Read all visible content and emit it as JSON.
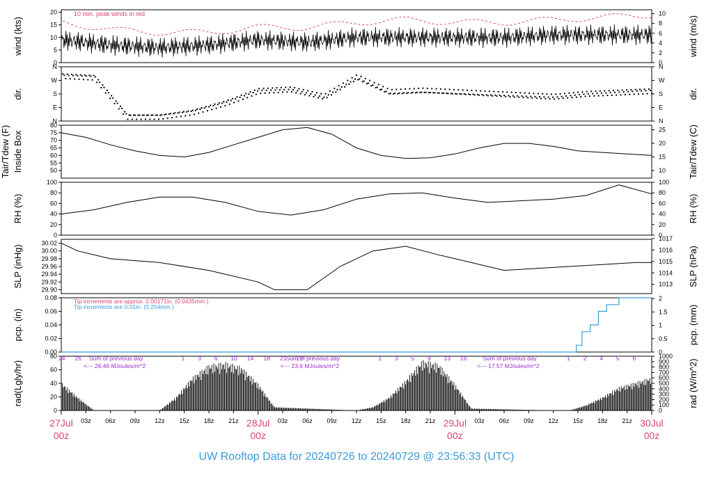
{
  "footer": {
    "title": "UW Rooftop Data for 20240726  to  20240729 @ 23:56:33  (UTC)"
  },
  "colors": {
    "frame": "#000000",
    "peak": "#d9456b",
    "date_label": "#d9456b",
    "title": "#3a9ad9",
    "pcp_line": "#3a9ad9",
    "annotation": "#9b2bd1"
  },
  "x_axis": {
    "hour_ticks": [
      "03z",
      "06z",
      "09z",
      "12z",
      "15z",
      "18z",
      "21z",
      "03z",
      "06z",
      "09z",
      "12z",
      "15z",
      "18z",
      "21z",
      "03z",
      "06z",
      "09z",
      "12z",
      "15z",
      "18z",
      "21z"
    ],
    "date_labels": [
      {
        "day": "27Jul",
        "time": "00z"
      },
      {
        "day": "28Jul",
        "time": "00z"
      },
      {
        "day": "29Jul",
        "time": "00z"
      },
      {
        "day": "30Jul",
        "time": "00z"
      }
    ]
  },
  "chart_data": [
    {
      "type": "line",
      "ylabel": "wind (kts)",
      "y2label": "wind (m/s)",
      "ylim": [
        0,
        21
      ],
      "y2lim": [
        0,
        10.8
      ],
      "yticks": [
        "0",
        "5",
        "10",
        "15",
        "20"
      ],
      "y2ticks": [
        "0",
        "2",
        "4",
        "6",
        "8",
        "10"
      ],
      "annotation": "10 min. peak winds in red",
      "series": [
        {
          "x": [
            0,
            6,
            12,
            18,
            24,
            30,
            36,
            42,
            48,
            54,
            60,
            66,
            72
          ],
          "y": [
            9,
            7,
            6,
            7,
            9,
            8,
            10,
            10,
            10,
            10,
            11,
            11,
            11
          ]
        },
        {
          "x": [
            0,
            6,
            12,
            18,
            24,
            30,
            36,
            42,
            48,
            54,
            60,
            66,
            72
          ],
          "y": [
            16,
            13,
            12,
            12,
            14,
            14,
            16,
            17,
            16,
            16,
            17,
            18,
            19
          ]
        }
      ]
    },
    {
      "type": "scatter",
      "ylabel": "dir.",
      "y2label": "dir.",
      "yticks": [
        "N",
        "E",
        "S",
        "W",
        "N"
      ],
      "y2ticks": [
        "N",
        "E",
        "S",
        "W",
        "N"
      ],
      "x": [
        0,
        4,
        8,
        12,
        16,
        20,
        24,
        28,
        32,
        36,
        40,
        44,
        48,
        52,
        56,
        60,
        64,
        68,
        72
      ],
      "y": [
        300,
        290,
        30,
        30,
        60,
        120,
        200,
        210,
        160,
        290,
        190,
        200,
        190,
        180,
        170,
        160,
        180,
        190,
        200
      ]
    },
    {
      "type": "line",
      "ylabel": "Tair/Tdew (F)",
      "ylabel2": "Inside Box",
      "y2label": "Tair/Tdew (C)",
      "ylim": [
        45,
        80
      ],
      "yticks": [
        "50",
        "55",
        "60",
        "65",
        "70",
        "75",
        "80"
      ],
      "y2ticks": [
        "10",
        "15",
        "20",
        "25"
      ],
      "x": [
        0,
        3,
        6,
        9,
        12,
        15,
        18,
        21,
        24,
        27,
        30,
        33,
        36,
        39,
        42,
        45,
        48,
        51,
        54,
        57,
        60,
        63,
        66,
        69,
        72
      ],
      "y": [
        75,
        72,
        67,
        63,
        60,
        59,
        62,
        67,
        72,
        77,
        78.5,
        74,
        65,
        60,
        58,
        58.5,
        61,
        65,
        68,
        68,
        66,
        63,
        62,
        61,
        60
      ]
    },
    {
      "type": "line",
      "ylabel": "RH (%)",
      "y2label": "RH (%)",
      "ylim": [
        0,
        100
      ],
      "yticks": [
        "0",
        "20",
        "40",
        "60",
        "80",
        "100"
      ],
      "y2ticks": [
        "0",
        "20",
        "40",
        "60",
        "80",
        "100"
      ],
      "x": [
        0,
        4,
        8,
        12,
        16,
        20,
        24,
        28,
        32,
        36,
        40,
        44,
        48,
        52,
        56,
        60,
        64,
        68,
        72
      ],
      "y": [
        40,
        48,
        62,
        72,
        72,
        62,
        45,
        38,
        48,
        68,
        78,
        80,
        70,
        62,
        65,
        68,
        75,
        95,
        78
      ]
    },
    {
      "type": "line",
      "ylabel": "SLP (inHg)",
      "y2label": "SLP (hPa)",
      "ylim": [
        29.89,
        30.03
      ],
      "yticks": [
        "29.90",
        "29.92",
        "29.94",
        "29.96",
        "29.98",
        "30.00",
        "30.02"
      ],
      "y2ticks": [
        "1013",
        "1014",
        "1015",
        "1016",
        "1017"
      ],
      "x": [
        0,
        2,
        6,
        12,
        18,
        24,
        26,
        30,
        34,
        38,
        42,
        46,
        50,
        54,
        58,
        62,
        66,
        70,
        72
      ],
      "y": [
        30.02,
        30.0,
        29.98,
        29.97,
        29.95,
        29.92,
        29.9,
        29.9,
        29.96,
        30.0,
        30.012,
        29.99,
        29.97,
        29.95,
        29.955,
        29.96,
        29.965,
        29.97,
        29.97
      ]
    },
    {
      "type": "line",
      "ylabel": "pcp. (in)",
      "y2label": "pcp. (mm)",
      "ylim": [
        0,
        0.08
      ],
      "yticks": [
        "0.00",
        "0.02",
        "0.04",
        "0.06",
        "0.08"
      ],
      "y2ticks": [
        "0",
        "0.5",
        "1",
        "1.5",
        "2"
      ],
      "notes": [
        "Tip increments are approx. 0.00171in. (0.0435mm.)",
        "Tip increments are 0.01in. (0.254mm.)"
      ],
      "x": [
        0,
        62.5,
        62.8,
        63.5,
        64.5,
        65.5,
        66.5,
        68,
        72
      ],
      "y": [
        0,
        0,
        0.01,
        0.03,
        0.04,
        0.06,
        0.07,
        0.08,
        0.08
      ]
    },
    {
      "type": "bar",
      "ylabel": "rad(Lgly/hr)",
      "y2label": "rad (W/m^2)",
      "ylim": [
        0,
        80
      ],
      "yticks": [
        "0",
        "20",
        "40",
        "60",
        "80"
      ],
      "y2ticks": [
        "0",
        "100",
        "200",
        "300",
        "400",
        "500",
        "600",
        "700",
        "800",
        "900",
        "1000"
      ],
      "day_summaries": [
        {
          "label": "Sum of previous day",
          "value": "<--- 26.46 MJoules/m^2"
        },
        {
          "label": "Sum of previous day",
          "value": "<--- 23.6 MJoules/m^2"
        },
        {
          "label": "Sum of previous day",
          "value": "<--- 17.57 MJoules/m^2"
        }
      ],
      "top_numbers": [
        "24",
        "26",
        "1",
        "3",
        "6",
        "10",
        "14",
        "18",
        "21",
        "23",
        "1",
        "3",
        "5",
        "9",
        "13",
        "16",
        "1",
        "2",
        "4",
        "5",
        "6"
      ],
      "x": [
        0,
        2,
        4,
        12,
        14,
        16,
        18,
        20,
        22,
        24,
        26,
        36,
        38,
        40,
        42,
        44,
        46,
        48,
        50,
        60,
        62,
        64,
        66,
        68,
        70,
        72
      ],
      "y": [
        42,
        20,
        0,
        0,
        20,
        50,
        68,
        72,
        65,
        40,
        5,
        0,
        5,
        20,
        45,
        75,
        70,
        40,
        3,
        0,
        0,
        8,
        20,
        35,
        42,
        50
      ]
    }
  ]
}
